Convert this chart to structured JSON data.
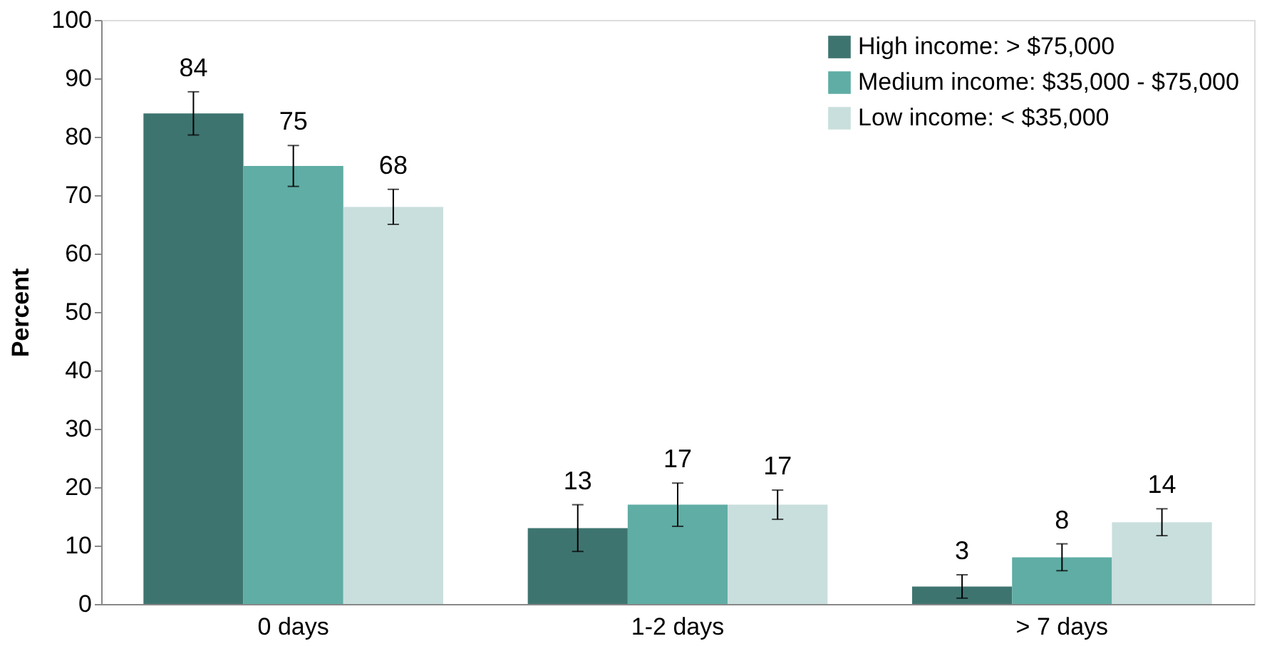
{
  "chart_data": {
    "type": "bar",
    "ylabel": "Percent",
    "categories": [
      "0 days",
      "1-2 days",
      "> 7 days"
    ],
    "series": [
      {
        "name": "High income: > $75,000",
        "color": "#3e7470",
        "values": [
          84,
          13,
          3
        ],
        "errors": [
          3.7,
          4,
          2
        ]
      },
      {
        "name": "Medium income: $35,000 - $75,000",
        "color": "#5fada5",
        "values": [
          75,
          17,
          8
        ],
        "errors": [
          3.5,
          3.7,
          2.3
        ]
      },
      {
        "name": "Low income: < $35,000",
        "color": "#c9dfdd",
        "values": [
          68,
          17,
          14
        ],
        "errors": [
          3,
          2.5,
          2.3
        ]
      }
    ],
    "ylim": [
      0,
      100
    ],
    "yticks": [
      0,
      10,
      20,
      30,
      40,
      50,
      60,
      70,
      80,
      90,
      100
    ],
    "data_labels": true,
    "legend": "top right",
    "grid": false
  }
}
